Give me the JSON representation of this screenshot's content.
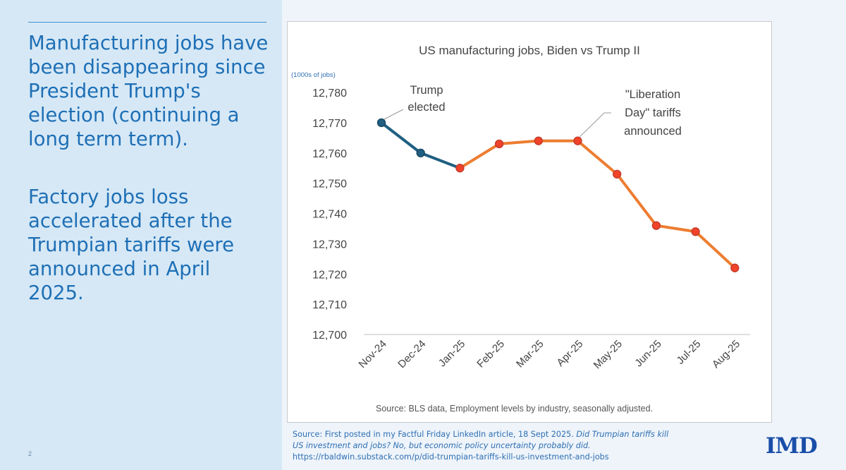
{
  "left_panel": {
    "paragraph1": "Manufacturing jobs have been disappearing since President Trump's election (continuing a long term term).",
    "paragraph2": "Factory jobs loss accelerated after the Trumpian tariffs were announced in April 2025.",
    "slide_number": "2"
  },
  "chart_data": {
    "type": "line",
    "title": "US manufacturing jobs, Biden vs Trump II",
    "ylabel": "(1000s of jobs)",
    "xlabel": "",
    "categories": [
      "Nov-24",
      "Dec-24",
      "Jan-25",
      "Feb-25",
      "Mar-25",
      "Apr-25",
      "May-25",
      "Jun-25",
      "Jul-25",
      "Aug-25"
    ],
    "series": [
      {
        "color": "#1f5f82",
        "x": [
          "Nov-24",
          "Dec-24",
          "Jan-25"
        ],
        "values": [
          12770,
          12760,
          12755
        ]
      },
      {
        "color": "#ed7d31",
        "x": [
          "Jan-25",
          "Feb-25",
          "Mar-25",
          "Apr-25",
          "May-25",
          "Jun-25",
          "Jul-25",
          "Aug-25"
        ],
        "values": [
          12755,
          12763,
          12764,
          12764,
          12753,
          12736,
          12734,
          12722
        ]
      }
    ],
    "ylim": [
      12700,
      12780
    ],
    "yticks": [
      12700,
      12710,
      12720,
      12730,
      12740,
      12750,
      12760,
      12770,
      12780
    ],
    "ytick_labels": [
      "12,700",
      "12,710",
      "12,720",
      "12,730",
      "12,740",
      "12,750",
      "12,760",
      "12,770",
      "12,780"
    ],
    "grid": false,
    "annotations": [
      {
        "text": [
          "Trump",
          "elected"
        ],
        "at": "Nov-24"
      },
      {
        "text": [
          "\"Liberation",
          "Day\" tariffs",
          "announced"
        ],
        "at": "Apr-25"
      }
    ],
    "source": "Source: BLS data, Employment levels by industry, seasonally adjusted."
  },
  "footnote": {
    "line1_plain": "Source: First posted in my Factful Friday LinkedIn article, 18 Sept 2025. ",
    "line1_italic": "Did Trumpian tariffs kill",
    "line2_italic": "US investment and jobs? No, but economic policy uncertainty probably did.",
    "line3": "https://rbaldwin.substack.com/p/did-trumpian-tariffs-kill-us-investment-and-jobs"
  },
  "logo": {
    "text": "IMD"
  },
  "colors": {
    "left_bg": "#d6e8f6",
    "left_text": "#1e6fb5",
    "biden_series": "#1f5f82",
    "trump_series": "#ed7d31",
    "marker_fill": "#f0432a",
    "footnote_text": "#2f6fb3",
    "logo": "#1a4da8"
  }
}
